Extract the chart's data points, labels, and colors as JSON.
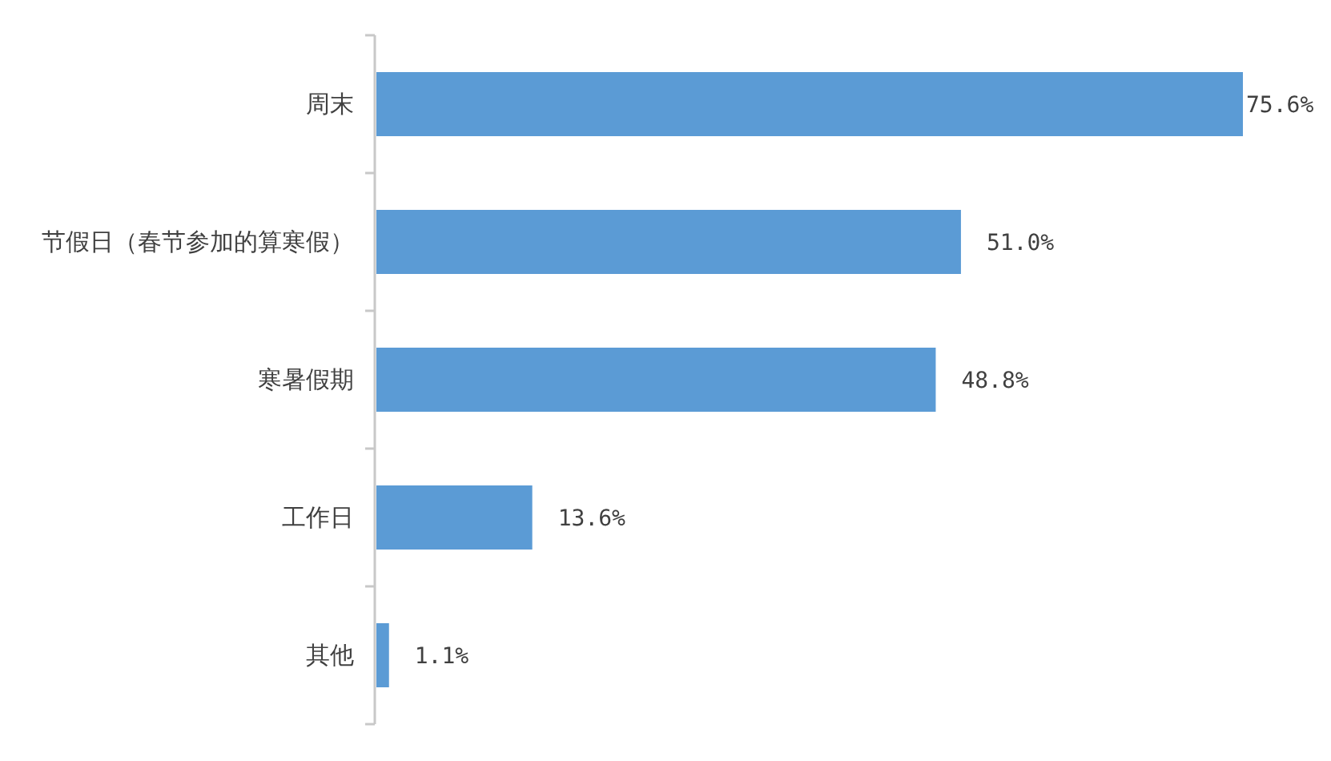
{
  "chart_data": {
    "type": "bar",
    "orientation": "horizontal",
    "categories": [
      "周末",
      "节假日（春节参加的算寒假）",
      "寒暑假期",
      "工作日",
      "其他"
    ],
    "values": [
      75.6,
      51.0,
      48.8,
      13.6,
      1.1
    ],
    "value_labels": [
      "75.6%",
      "51.0%",
      "48.8%",
      "13.6%",
      "1.1%"
    ],
    "color": "#5b9bd5"
  }
}
